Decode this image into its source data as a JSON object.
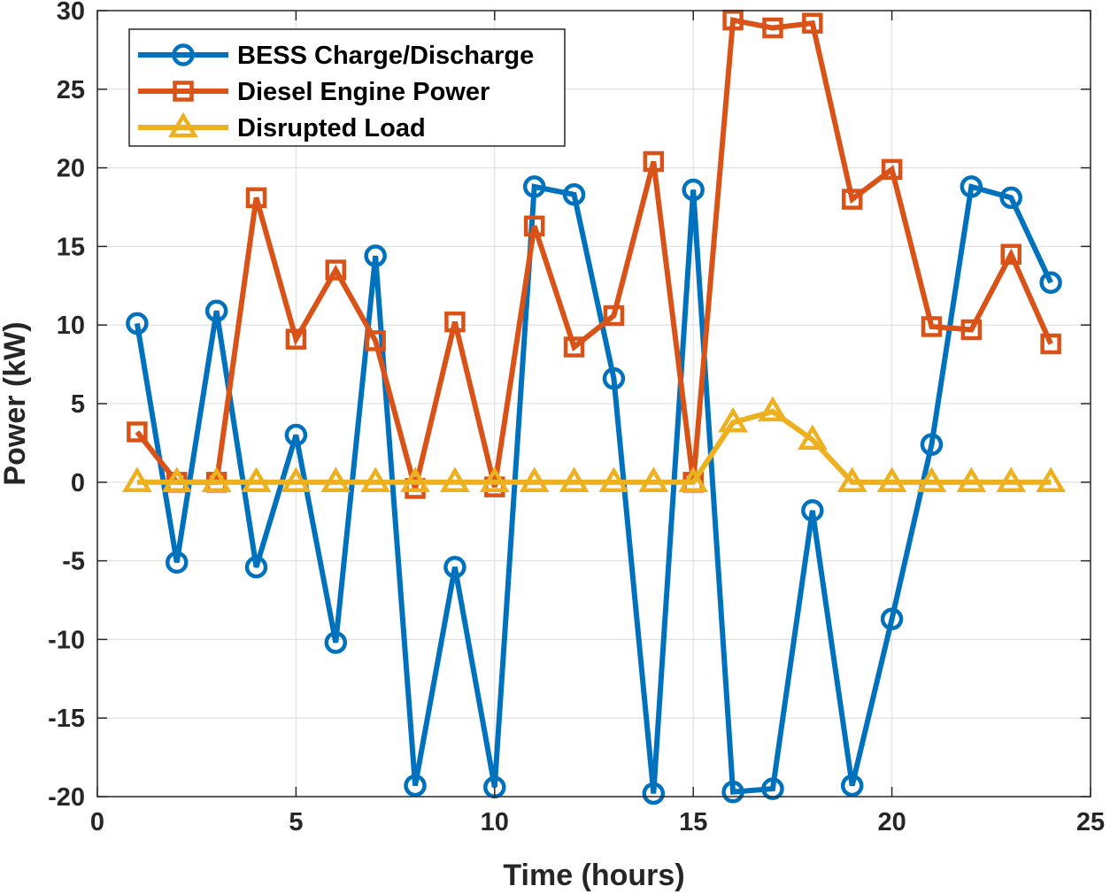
{
  "chart_data": {
    "type": "line",
    "title": "",
    "xlabel": "Time (hours)",
    "ylabel": "Power (kW)",
    "xlim": [
      0,
      25
    ],
    "ylim": [
      -20,
      30
    ],
    "xticks": [
      0,
      5,
      10,
      15,
      20,
      25
    ],
    "yticks": [
      -20,
      -15,
      -10,
      -5,
      0,
      5,
      10,
      15,
      20,
      25,
      30
    ],
    "grid": true,
    "legend_position": "top-left",
    "x": [
      1,
      2,
      3,
      4,
      5,
      6,
      7,
      8,
      9,
      10,
      11,
      12,
      13,
      14,
      15,
      16,
      17,
      18,
      19,
      20,
      21,
      22,
      23,
      24
    ],
    "series": [
      {
        "name": "BESS Charge/Discharge",
        "color": "#0072BD",
        "marker": "circle",
        "values": [
          10.1,
          -5.1,
          10.9,
          -5.4,
          3.0,
          -10.2,
          14.4,
          -19.3,
          -5.4,
          -19.4,
          18.8,
          18.3,
          6.6,
          -19.8,
          18.6,
          -19.7,
          -19.5,
          -1.8,
          -19.3,
          -8.7,
          2.4,
          18.8,
          18.1,
          12.7
        ]
      },
      {
        "name": "Diesel Engine Power",
        "color": "#D95319",
        "marker": "square",
        "values": [
          3.2,
          0.0,
          0.0,
          18.1,
          9.1,
          13.5,
          9.0,
          -0.4,
          10.2,
          -0.3,
          16.3,
          8.6,
          10.6,
          20.4,
          0.0,
          29.4,
          28.9,
          29.2,
          18.0,
          19.9,
          9.9,
          9.7,
          14.5,
          8.8
        ]
      },
      {
        "name": "Disrupted Load",
        "color": "#EDB120",
        "marker": "triangle",
        "values": [
          0,
          0,
          0,
          0,
          0,
          0,
          0,
          0,
          0,
          0,
          0,
          0,
          0,
          0,
          0,
          3.8,
          4.5,
          2.7,
          0,
          0,
          0,
          0,
          0,
          0
        ]
      }
    ]
  }
}
